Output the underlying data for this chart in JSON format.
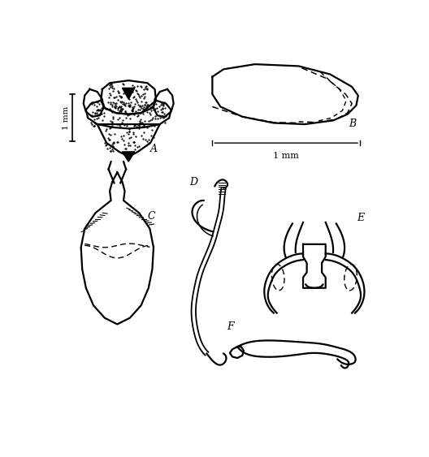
{
  "bg_color": "#ffffff",
  "line_color": "#000000",
  "label_A": "A",
  "label_B": "B",
  "label_C": "C",
  "label_D": "D",
  "label_E": "E",
  "label_F": "F",
  "scale_1mm_vert": "1 mm",
  "scale_1mm_horiz": "1 mm",
  "fig_width": 5.28,
  "fig_height": 5.63
}
